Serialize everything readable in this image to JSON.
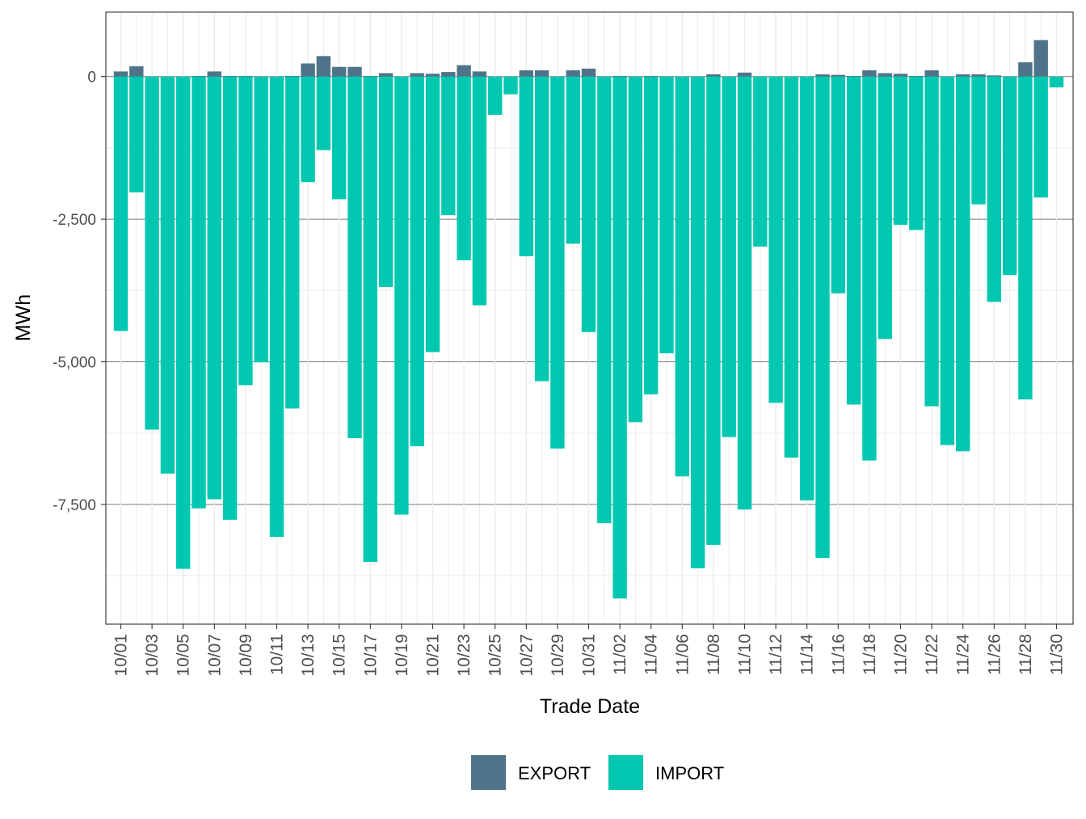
{
  "colors": {
    "export": "#4f7489",
    "import": "#00c8b0",
    "grid_major": "#7a7a7a",
    "grid_minor": "#ebebeb",
    "axis_text": "#4d4d4d",
    "panel_border": "#333333"
  },
  "chart_data": {
    "type": "bar",
    "stacked": "diverging",
    "xlabel": "Trade Date",
    "ylabel": "MWh",
    "ylim": [
      -9600,
      1130
    ],
    "y_ticks": [
      0,
      -2500,
      -5000,
      -7500
    ],
    "y_tick_labels": [
      "0",
      "-2,500",
      "-5,000",
      "-7,500"
    ],
    "categories": [
      "10/01",
      "10/02",
      "10/03",
      "10/04",
      "10/05",
      "10/06",
      "10/07",
      "10/08",
      "10/09",
      "10/10",
      "10/11",
      "10/12",
      "10/13",
      "10/14",
      "10/15",
      "10/16",
      "10/17",
      "10/18",
      "10/19",
      "10/20",
      "10/21",
      "10/22",
      "10/23",
      "10/24",
      "10/25",
      "10/26",
      "10/27",
      "10/28",
      "10/29",
      "10/30",
      "10/31",
      "11/01",
      "11/02",
      "11/03",
      "11/04",
      "11/05",
      "11/06",
      "11/07",
      "11/08",
      "11/09",
      "11/10",
      "11/11",
      "11/12",
      "11/13",
      "11/14",
      "11/15",
      "11/16",
      "11/17",
      "11/18",
      "11/19",
      "11/20",
      "11/21",
      "11/22",
      "11/23",
      "11/24",
      "11/25",
      "11/26",
      "11/27",
      "11/28",
      "11/29",
      "11/30"
    ],
    "x_tick_labels": [
      "10/01",
      "10/03",
      "10/05",
      "10/07",
      "10/09",
      "10/11",
      "10/13",
      "10/15",
      "10/17",
      "10/19",
      "10/21",
      "10/23",
      "10/25",
      "10/27",
      "10/29",
      "10/31",
      "11/02",
      "11/04",
      "11/06",
      "11/08",
      "11/10",
      "11/12",
      "11/14",
      "11/16",
      "11/18",
      "11/20",
      "11/22",
      "11/24",
      "11/26",
      "11/28",
      "11/30"
    ],
    "legend_position": "bottom",
    "series": [
      {
        "name": "EXPORT",
        "values": [
          90,
          180,
          0,
          0,
          0,
          10,
          90,
          10,
          10,
          0,
          0,
          10,
          230,
          360,
          170,
          170,
          10,
          60,
          0,
          60,
          50,
          80,
          200,
          90,
          0,
          0,
          110,
          110,
          0,
          110,
          140,
          0,
          10,
          0,
          10,
          0,
          0,
          0,
          40,
          0,
          70,
          0,
          0,
          0,
          0,
          40,
          30,
          10,
          110,
          60,
          50,
          10,
          110,
          0,
          40,
          40,
          20,
          0,
          250,
          640,
          0
        ]
      },
      {
        "name": "IMPORT",
        "values": [
          -4460,
          -2030,
          -6190,
          -6960,
          -8630,
          -7570,
          -7410,
          -7770,
          -5410,
          -5010,
          -8070,
          -5820,
          -1850,
          -1290,
          -2150,
          -6340,
          -8510,
          -3690,
          -7680,
          -6480,
          -4830,
          -2430,
          -3220,
          -4010,
          -670,
          -310,
          -3150,
          -5340,
          -6520,
          -2930,
          -4480,
          -7830,
          -9150,
          -6060,
          -5570,
          -4850,
          -7010,
          -8620,
          -8210,
          -6320,
          -7590,
          -2980,
          -5720,
          -6680,
          -7430,
          -8440,
          -3800,
          -5750,
          -6730,
          -4600,
          -2600,
          -2690,
          -5780,
          -6460,
          -6570,
          -2240,
          -3950,
          -3480,
          -5660,
          -2120,
          -190
        ]
      }
    ]
  }
}
